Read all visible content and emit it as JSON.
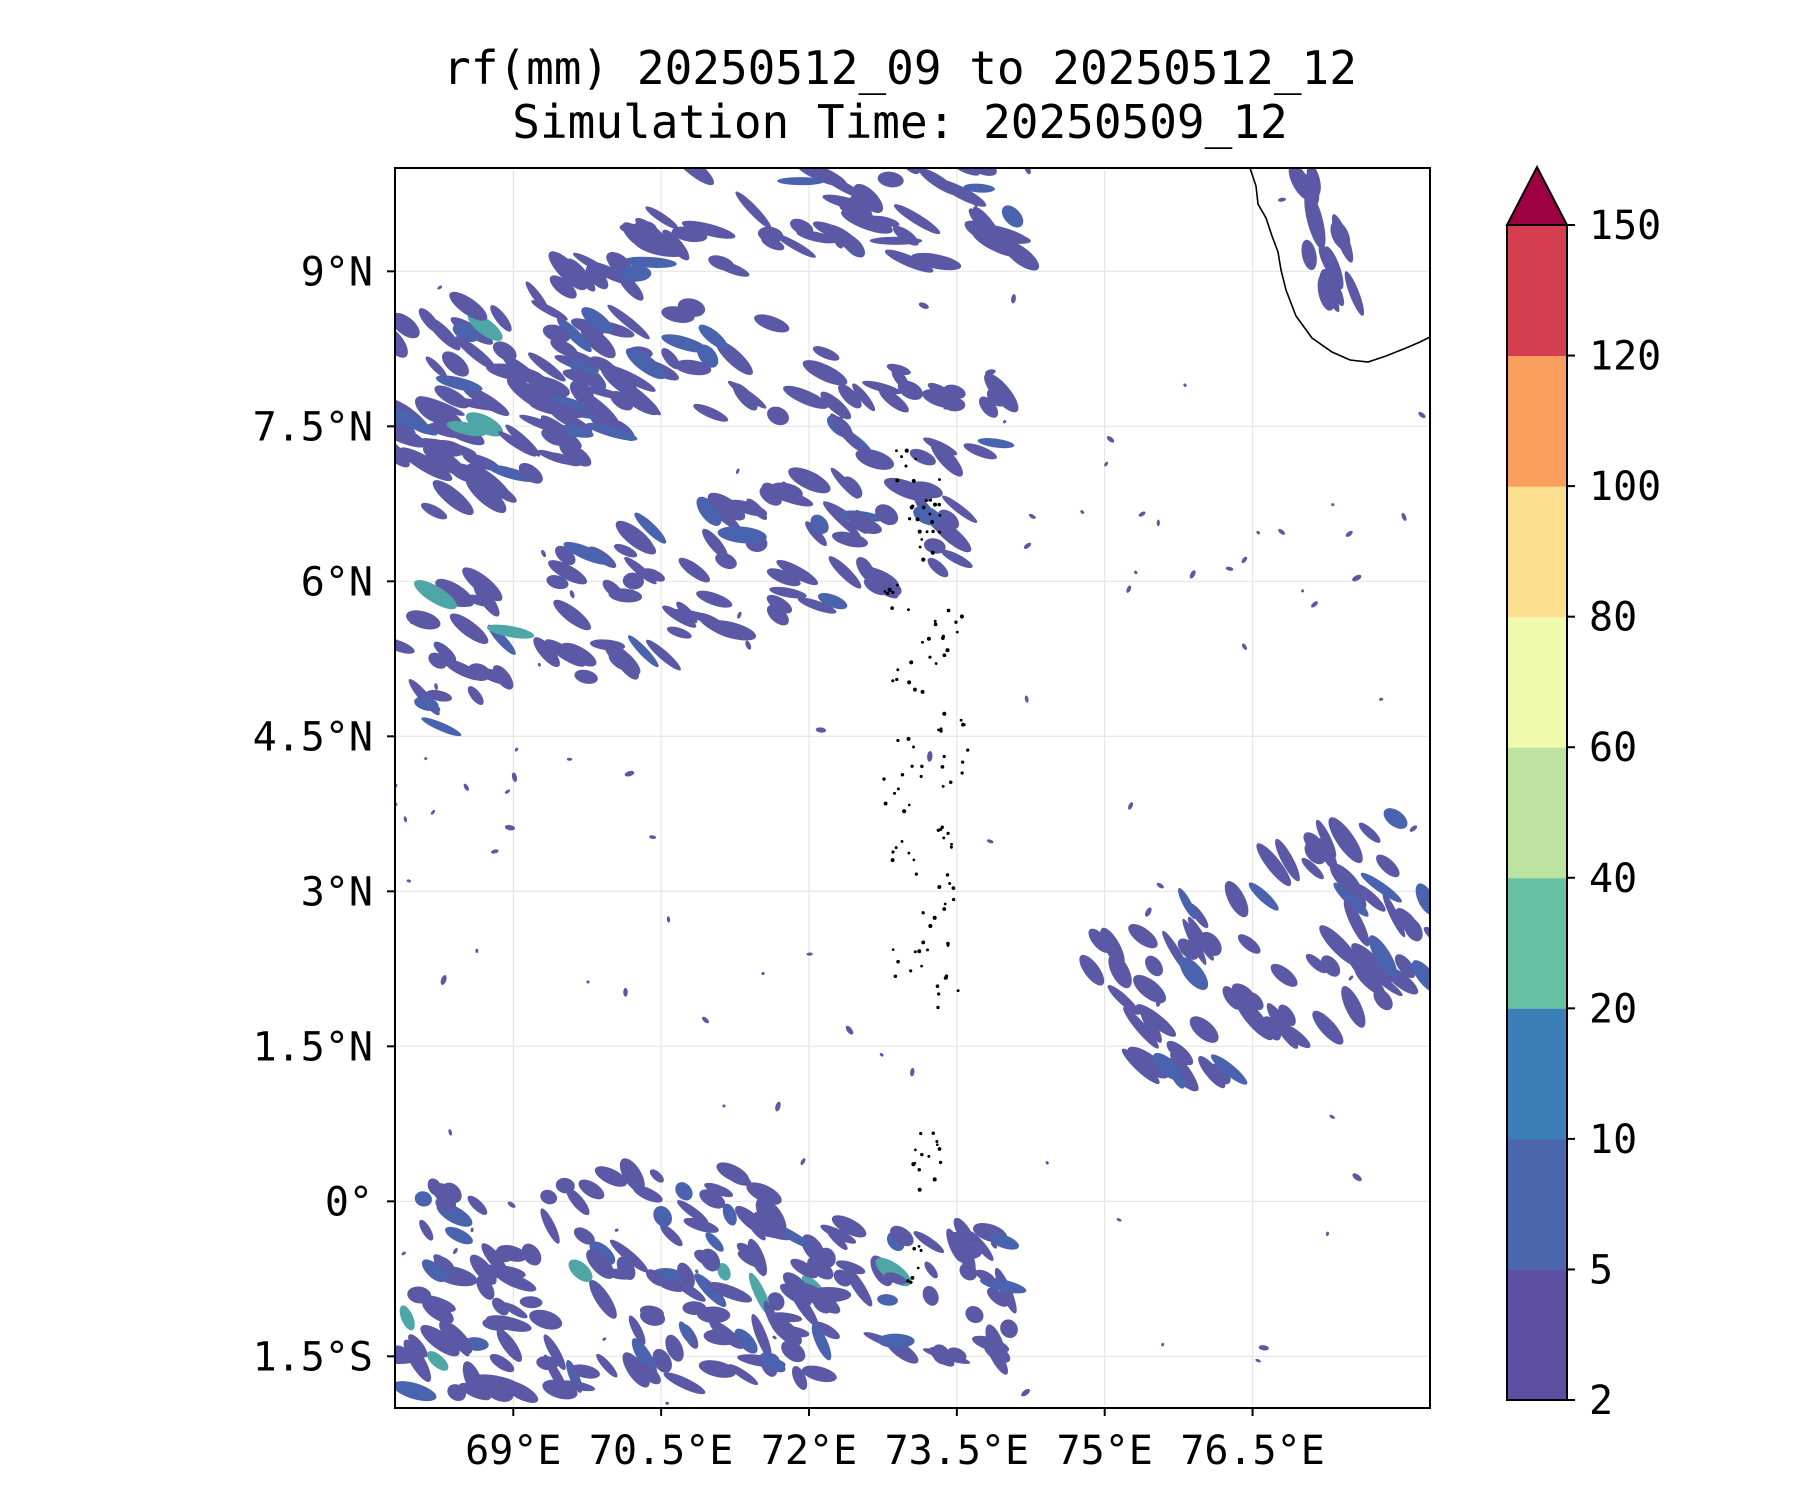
{
  "title": {
    "line1": "rf(mm) 20250512_09 to 20250512_12",
    "line2": "Simulation Time: 20250509_12"
  },
  "map": {
    "lon_range": [
      67.8,
      78.3
    ],
    "lat_range": [
      -2.0,
      10.0
    ],
    "x_ticks": [
      {
        "value": 69.0,
        "label": "69°E"
      },
      {
        "value": 70.5,
        "label": "70.5°E"
      },
      {
        "value": 72.0,
        "label": "72°E"
      },
      {
        "value": 73.5,
        "label": "73.5°E"
      },
      {
        "value": 75.0,
        "label": "75°E"
      },
      {
        "value": 76.5,
        "label": "76.5°E"
      }
    ],
    "y_ticks": [
      {
        "value": 9.0,
        "label": "9°N"
      },
      {
        "value": 7.5,
        "label": "7.5°N"
      },
      {
        "value": 6.0,
        "label": "6°N"
      },
      {
        "value": 4.5,
        "label": "4.5°N"
      },
      {
        "value": 3.0,
        "label": "3°N"
      },
      {
        "value": 1.5,
        "label": "1.5°N"
      },
      {
        "value": 0.0,
        "label": "0°"
      },
      {
        "value": -1.5,
        "label": "1.5°S"
      }
    ],
    "grid": true,
    "rain_color": "#5b58a5",
    "rain_color_heavy": "#4a63ae",
    "rain_color_peak": "#4fa6a6",
    "rain_bands": [
      {
        "region": "northwest band",
        "lon": [
          67.8,
          72.0
        ],
        "lat": [
          6.8,
          9.0
        ]
      },
      {
        "region": "north central cells",
        "lon": [
          70.5,
          73.7
        ],
        "lat": [
          7.3,
          10.0
        ]
      },
      {
        "region": "sri lanka west coast",
        "lon": [
          77.0,
          77.6
        ],
        "lat": [
          8.7,
          10.0
        ]
      },
      {
        "region": "diagonal band",
        "lon": [
          67.8,
          73.2
        ],
        "lat": [
          4.9,
          6.8
        ]
      },
      {
        "region": "southeast band",
        "lon": [
          75.0,
          78.3
        ],
        "lat": [
          0.7,
          3.5
        ]
      },
      {
        "region": "southern band",
        "lon": [
          67.8,
          73.7
        ],
        "lat": [
          -1.8,
          0.4
        ]
      }
    ]
  },
  "colorbar": {
    "levels": [
      2,
      5,
      10,
      20,
      40,
      60,
      80,
      100,
      120,
      150
    ],
    "labels": [
      "2",
      "5",
      "10",
      "20",
      "40",
      "60",
      "80",
      "100",
      "120",
      "150"
    ],
    "colors": [
      "#5e4fa2",
      "#4b66ad",
      "#3a7fb8",
      "#66c2a5",
      "#bde3a0",
      "#f1f9ac",
      "#fbdf8f",
      "#f99e5d",
      "#d53e4f"
    ],
    "extend_color": "#9e0142"
  },
  "chart_data": {
    "type": "heatmap",
    "title": "rf(mm) 20250512_09 to 20250512_12",
    "subtitle": "Simulation Time: 20250509_12",
    "xlabel": "",
    "ylabel": "",
    "xlim": [
      67.8,
      78.3
    ],
    "ylim": [
      -2.0,
      10.0
    ],
    "colorbar_levels_mm": [
      2,
      5,
      10,
      20,
      40,
      60,
      80,
      100,
      120,
      150
    ],
    "dominant_range_mm": [
      2,
      10
    ]
  }
}
